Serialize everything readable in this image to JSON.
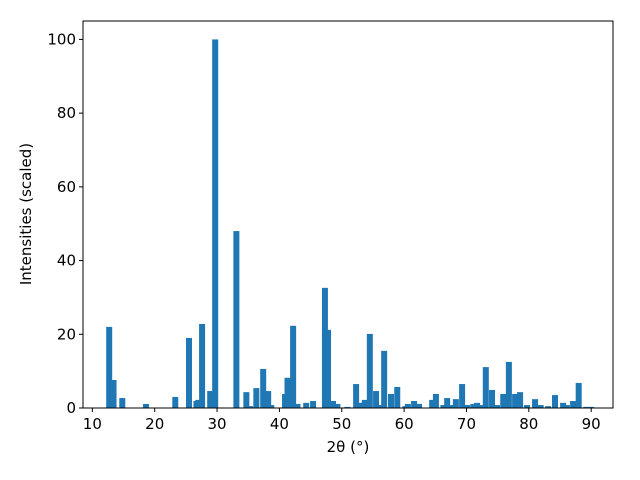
{
  "chart_data": {
    "type": "bar",
    "xlabel": "2θ (°)",
    "ylabel": "Intensities (scaled)",
    "color": "#1f77b4",
    "xlim": [
      8.5,
      93.5
    ],
    "ylim": [
      0,
      105
    ],
    "xticks": [
      10,
      20,
      30,
      40,
      50,
      60,
      70,
      80,
      90
    ],
    "yticks": [
      0,
      20,
      40,
      60,
      80,
      100
    ],
    "x": [
      12.7,
      13.4,
      14.8,
      18.6,
      23.3,
      25.5,
      26.7,
      27,
      27.6,
      28.9,
      29.7,
      33.1,
      34.7,
      35.3,
      36.3,
      37.4,
      38.2,
      38.7,
      40.9,
      41.3,
      42.2,
      42.9,
      44.3,
      45.4,
      47.3,
      47.8,
      48.6,
      49.3,
      50.9,
      52.3,
      52.9,
      53.7,
      54.5,
      55.5,
      56.2,
      56.8,
      57.9,
      58.9,
      60.2,
      60.6,
      61.6,
      62.4,
      64.5,
      65.1,
      66.3,
      66.9,
      67.5,
      68.3,
      69.3,
      70.1,
      71.1,
      71.7,
      72.3,
      73.1,
      74.1,
      74.9,
      75.9,
      76.8,
      77.8,
      78.6,
      79.7,
      81.0,
      81.9,
      83.1,
      84.2,
      85.5,
      86.1,
      87.1,
      88.0,
      89.2,
      90.0
    ],
    "values": [
      22,
      7.6,
      2.7,
      1.1,
      3.0,
      19,
      1.9,
      2.2,
      22.8,
      4.6,
      100,
      48,
      4.3,
      0.5,
      5.4,
      10.6,
      4.6,
      0.8,
      3.8,
      8.2,
      22.3,
      1.1,
      1.4,
      1.9,
      32.6,
      21.2,
      1.9,
      1.1,
      0.3,
      6.5,
      1.4,
      2.2,
      20.1,
      4.6,
      0.8,
      15.5,
      3.8,
      5.7,
      0.5,
      1.1,
      1.9,
      1.1,
      2.2,
      3.8,
      0.8,
      2.7,
      0.8,
      2.4,
      6.5,
      0.8,
      1.1,
      1.4,
      0.8,
      11.1,
      4.9,
      0.8,
      3.8,
      12.5,
      3.8,
      4.3,
      0.8,
      2.4,
      0.8,
      0.5,
      3.5,
      1.4,
      0.8,
      1.9,
      6.8,
      0.3,
      0.3
    ]
  }
}
